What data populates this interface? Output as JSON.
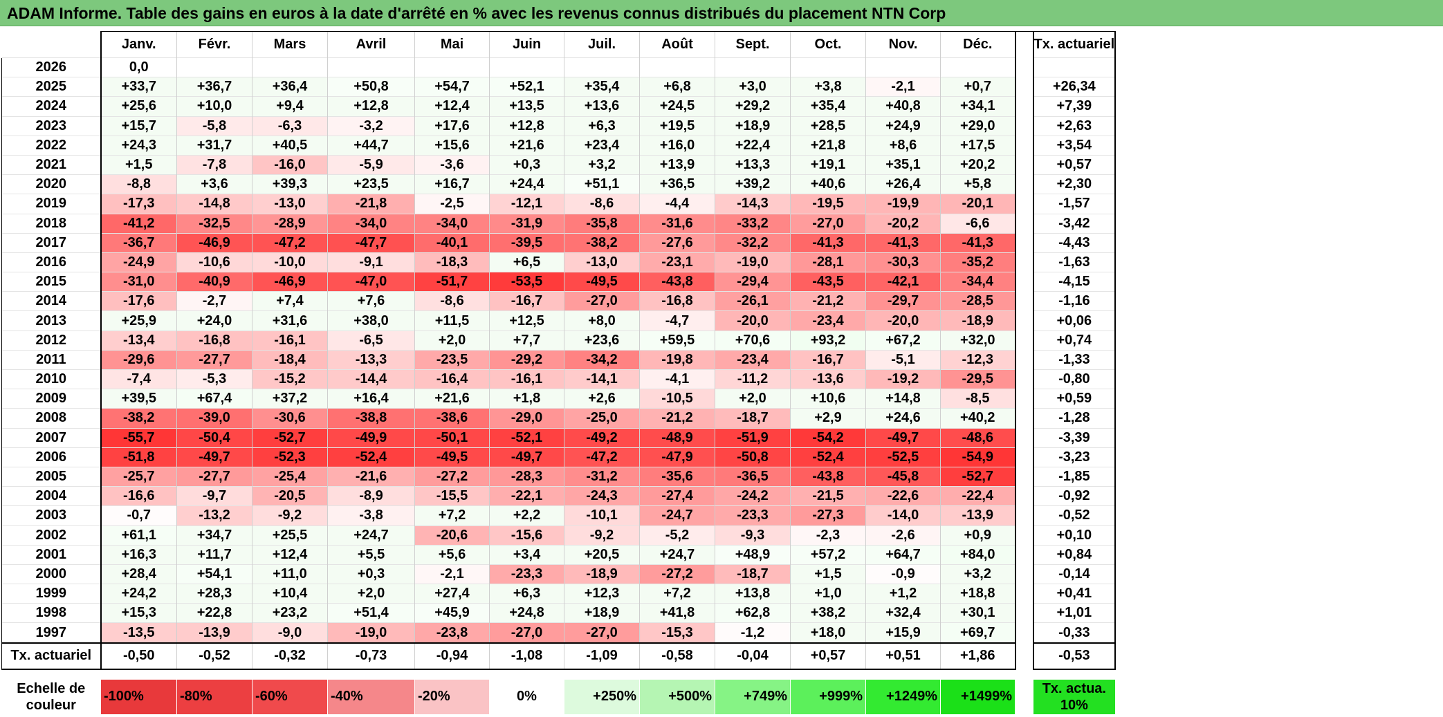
{
  "title": "ADAM Informe. Table des gains en euros à la date d'arrêté en % avec les revenus connus distribués du placement NTN Corp",
  "months": [
    "Janv.",
    "Févr.",
    "Mars",
    "Avril",
    "Mai",
    "Juin",
    "Juil.",
    "Août",
    "Sept.",
    "Oct.",
    "Nov.",
    "Déc."
  ],
  "annual_header": "Tx. actuariel",
  "rows": [
    {
      "year": "2026",
      "values": [
        "0,0",
        "",
        "",
        "",
        "",
        "",
        "",
        "",
        "",
        "",
        "",
        ""
      ],
      "annual": ""
    },
    {
      "year": "2025",
      "values": [
        "+33,7",
        "+36,7",
        "+36,4",
        "+50,8",
        "+54,7",
        "+52,1",
        "+35,4",
        "+6,8",
        "+3,0",
        "+3,8",
        "-2,1",
        "+0,7"
      ],
      "annual": "+26,34"
    },
    {
      "year": "2024",
      "values": [
        "+25,6",
        "+10,0",
        "+9,4",
        "+12,8",
        "+12,4",
        "+13,5",
        "+13,6",
        "+24,5",
        "+29,2",
        "+35,4",
        "+40,8",
        "+34,1"
      ],
      "annual": "+7,39"
    },
    {
      "year": "2023",
      "values": [
        "+15,7",
        "-5,8",
        "-6,3",
        "-3,2",
        "+17,6",
        "+12,8",
        "+6,3",
        "+19,5",
        "+18,9",
        "+28,5",
        "+24,9",
        "+29,0"
      ],
      "annual": "+2,63"
    },
    {
      "year": "2022",
      "values": [
        "+24,3",
        "+31,7",
        "+40,5",
        "+44,7",
        "+15,6",
        "+21,6",
        "+23,4",
        "+16,0",
        "+22,4",
        "+21,8",
        "+8,6",
        "+17,5"
      ],
      "annual": "+3,54"
    },
    {
      "year": "2021",
      "values": [
        "+1,5",
        "-7,8",
        "-16,0",
        "-5,9",
        "-3,6",
        "+0,3",
        "+3,2",
        "+13,9",
        "+13,3",
        "+19,1",
        "+35,1",
        "+20,2"
      ],
      "annual": "+0,57"
    },
    {
      "year": "2020",
      "values": [
        "-8,8",
        "+3,6",
        "+39,3",
        "+23,5",
        "+16,7",
        "+24,4",
        "+51,1",
        "+36,5",
        "+39,2",
        "+40,6",
        "+26,4",
        "+5,8"
      ],
      "annual": "+2,30"
    },
    {
      "year": "2019",
      "values": [
        "-17,3",
        "-14,8",
        "-13,0",
        "-21,8",
        "-2,5",
        "-12,1",
        "-8,6",
        "-4,4",
        "-14,3",
        "-19,5",
        "-19,9",
        "-20,1"
      ],
      "annual": "-1,57"
    },
    {
      "year": "2018",
      "values": [
        "-41,2",
        "-32,5",
        "-28,9",
        "-34,0",
        "-34,0",
        "-31,9",
        "-35,8",
        "-31,6",
        "-33,2",
        "-27,0",
        "-20,2",
        "-6,6"
      ],
      "annual": "-3,42"
    },
    {
      "year": "2017",
      "values": [
        "-36,7",
        "-46,9",
        "-47,2",
        "-47,7",
        "-40,1",
        "-39,5",
        "-38,2",
        "-27,6",
        "-32,2",
        "-41,3",
        "-41,3",
        "-41,3"
      ],
      "annual": "-4,43"
    },
    {
      "year": "2016",
      "values": [
        "-24,9",
        "-10,6",
        "-10,0",
        "-9,1",
        "-18,3",
        "+6,5",
        "-13,0",
        "-23,1",
        "-19,0",
        "-28,1",
        "-30,3",
        "-35,2"
      ],
      "annual": "-1,63"
    },
    {
      "year": "2015",
      "values": [
        "-31,0",
        "-40,9",
        "-46,9",
        "-47,0",
        "-51,7",
        "-53,5",
        "-49,5",
        "-43,8",
        "-29,4",
        "-43,5",
        "-42,1",
        "-34,4"
      ],
      "annual": "-4,15"
    },
    {
      "year": "2014",
      "values": [
        "-17,6",
        "-2,7",
        "+7,4",
        "+7,6",
        "-8,6",
        "-16,7",
        "-27,0",
        "-16,8",
        "-26,1",
        "-21,2",
        "-29,7",
        "-28,5"
      ],
      "annual": "-1,16"
    },
    {
      "year": "2013",
      "values": [
        "+25,9",
        "+24,0",
        "+31,6",
        "+38,0",
        "+11,5",
        "+12,5",
        "+8,0",
        "-4,7",
        "-20,0",
        "-23,4",
        "-20,0",
        "-18,9"
      ],
      "annual": "+0,06"
    },
    {
      "year": "2012",
      "values": [
        "-13,4",
        "-16,8",
        "-16,1",
        "-6,5",
        "+2,0",
        "+7,7",
        "+23,6",
        "+59,5",
        "+70,6",
        "+93,2",
        "+67,2",
        "+32,0"
      ],
      "annual": "+0,74"
    },
    {
      "year": "2011",
      "values": [
        "-29,6",
        "-27,7",
        "-18,4",
        "-13,3",
        "-23,5",
        "-29,2",
        "-34,2",
        "-19,8",
        "-23,4",
        "-16,7",
        "-5,1",
        "-12,3"
      ],
      "annual": "-1,33"
    },
    {
      "year": "2010",
      "values": [
        "-7,4",
        "-5,3",
        "-15,2",
        "-14,4",
        "-16,4",
        "-16,1",
        "-14,1",
        "-4,1",
        "-11,2",
        "-13,6",
        "-19,2",
        "-29,5"
      ],
      "annual": "-0,80"
    },
    {
      "year": "2009",
      "values": [
        "+39,5",
        "+67,4",
        "+37,2",
        "+16,4",
        "+21,6",
        "+1,8",
        "+2,6",
        "-10,5",
        "+2,0",
        "+10,6",
        "+14,8",
        "-8,5"
      ],
      "annual": "+0,59"
    },
    {
      "year": "2008",
      "values": [
        "-38,2",
        "-39,0",
        "-30,6",
        "-38,8",
        "-38,6",
        "-29,0",
        "-25,0",
        "-21,2",
        "-18,7",
        "+2,9",
        "+24,6",
        "+40,2"
      ],
      "annual": "-1,28"
    },
    {
      "year": "2007",
      "values": [
        "-55,7",
        "-50,4",
        "-52,7",
        "-49,9",
        "-50,1",
        "-52,1",
        "-49,2",
        "-48,9",
        "-51,9",
        "-54,2",
        "-49,7",
        "-48,6"
      ],
      "annual": "-3,39"
    },
    {
      "year": "2006",
      "values": [
        "-51,8",
        "-49,7",
        "-52,3",
        "-52,4",
        "-49,5",
        "-49,7",
        "-47,2",
        "-47,9",
        "-50,8",
        "-52,4",
        "-52,5",
        "-54,9"
      ],
      "annual": "-3,23"
    },
    {
      "year": "2005",
      "values": [
        "-25,7",
        "-27,7",
        "-25,4",
        "-21,6",
        "-27,2",
        "-28,3",
        "-31,2",
        "-35,6",
        "-36,5",
        "-43,8",
        "-45,8",
        "-52,7"
      ],
      "annual": "-1,85"
    },
    {
      "year": "2004",
      "values": [
        "-16,6",
        "-9,7",
        "-20,5",
        "-8,9",
        "-15,5",
        "-22,1",
        "-24,3",
        "-27,4",
        "-24,2",
        "-21,5",
        "-22,6",
        "-22,4"
      ],
      "annual": "-0,92"
    },
    {
      "year": "2003",
      "values": [
        "-0,7",
        "-13,2",
        "-9,2",
        "-3,8",
        "+7,2",
        "+2,2",
        "-10,1",
        "-24,7",
        "-23,3",
        "-27,3",
        "-14,0",
        "-13,9"
      ],
      "annual": "-0,52"
    },
    {
      "year": "2002",
      "values": [
        "+61,1",
        "+34,7",
        "+25,5",
        "+24,7",
        "-20,6",
        "-15,6",
        "-9,2",
        "-5,2",
        "-9,3",
        "-2,3",
        "-2,6",
        "+0,9"
      ],
      "annual": "+0,10"
    },
    {
      "year": "2001",
      "values": [
        "+16,3",
        "+11,7",
        "+12,4",
        "+5,5",
        "+5,6",
        "+3,4",
        "+20,5",
        "+24,7",
        "+48,9",
        "+57,2",
        "+64,7",
        "+84,0"
      ],
      "annual": "+0,84"
    },
    {
      "year": "2000",
      "values": [
        "+28,4",
        "+54,1",
        "+11,0",
        "+0,3",
        "-2,1",
        "-23,3",
        "-18,9",
        "-27,2",
        "-18,7",
        "+1,5",
        "-0,9",
        "+3,2"
      ],
      "annual": "-0,14"
    },
    {
      "year": "1999",
      "values": [
        "+24,2",
        "+28,3",
        "+10,4",
        "+2,0",
        "+27,4",
        "+6,3",
        "+12,3",
        "+7,2",
        "+13,8",
        "+1,0",
        "+1,2",
        "+18,8"
      ],
      "annual": "+0,41"
    },
    {
      "year": "1998",
      "values": [
        "+15,3",
        "+22,8",
        "+23,2",
        "+51,4",
        "+45,9",
        "+24,8",
        "+18,9",
        "+41,8",
        "+62,8",
        "+38,2",
        "+32,4",
        "+30,1"
      ],
      "annual": "+1,01"
    },
    {
      "year": "1997",
      "values": [
        "-13,5",
        "-13,9",
        "-9,0",
        "-19,0",
        "-23,8",
        "-27,0",
        "-27,0",
        "-15,3",
        "-1,2",
        "+18,0",
        "+15,9",
        "+69,7"
      ],
      "annual": "-0,33"
    }
  ],
  "totals": {
    "label": "Tx. actuariel",
    "values": [
      "-0,50",
      "-0,52",
      "-0,32",
      "-0,73",
      "-0,94",
      "-1,08",
      "-1,09",
      "-0,58",
      "-0,04",
      "+0,57",
      "+0,51",
      "+1,86"
    ],
    "annual": "-0,53"
  },
  "scale": {
    "label": "Echelle de couleur",
    "steps": [
      {
        "label": "-100%",
        "color": "#e8393b"
      },
      {
        "label": "-80%",
        "color": "#ec3f41"
      },
      {
        "label": "-60%",
        "color": "#f04a4c"
      },
      {
        "label": "-40%",
        "color": "#f5878a"
      },
      {
        "label": "-20%",
        "color": "#fac3c5"
      },
      {
        "label": "0%",
        "color": "#ffffff"
      },
      {
        "label": "+250%",
        "color": "#ddfadd"
      },
      {
        "label": "+500%",
        "color": "#b5f5b3"
      },
      {
        "label": "+749%",
        "color": "#86f385"
      },
      {
        "label": "+999%",
        "color": "#5cf05b"
      },
      {
        "label": "+1249%",
        "color": "#33ea31"
      },
      {
        "label": "+1499%",
        "color": "#1be018"
      }
    ],
    "annual_label": "Tx. actua. 10%",
    "annual_color": "#23e021"
  },
  "colors": {
    "title_bar": "#7dc87d",
    "negative_max": "#fb3636",
    "positive_max": "#33ea31"
  }
}
